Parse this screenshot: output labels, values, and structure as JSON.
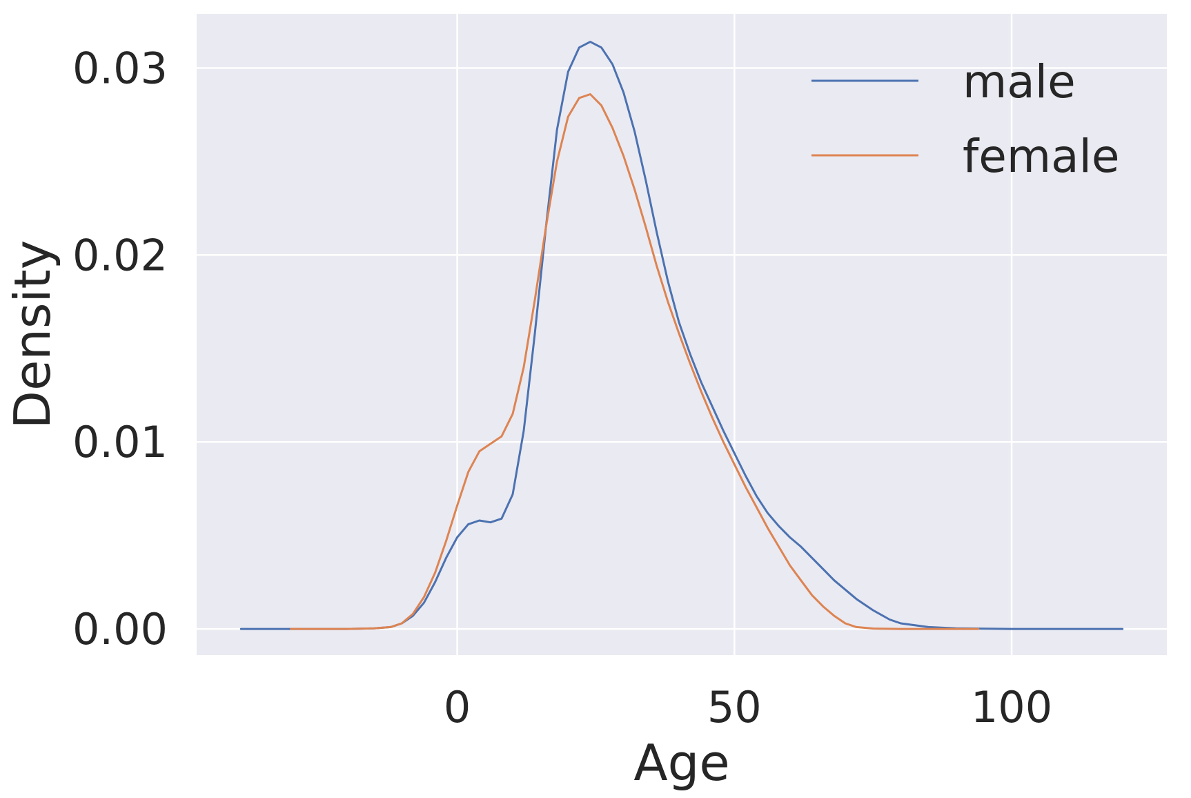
{
  "chart_data": {
    "type": "line",
    "title": "",
    "xlabel": "Age",
    "ylabel": "Density",
    "xlim": [
      -47,
      128
    ],
    "ylim": [
      -0.0014,
      0.0329
    ],
    "xticks": [
      0,
      50,
      100
    ],
    "xtick_labels": [
      "0",
      "50",
      "100"
    ],
    "yticks": [
      0.0,
      0.01,
      0.02,
      0.03
    ],
    "ytick_labels": [
      "0.00",
      "0.01",
      "0.02",
      "0.03"
    ],
    "grid": true,
    "legend": "top-right",
    "series": [
      {
        "name": "male",
        "color": "#4c72b0",
        "x": [
          -39,
          -30,
          -20,
          -15,
          -12,
          -10,
          -8,
          -6,
          -4,
          -2,
          0,
          2,
          4,
          6,
          8,
          10,
          12,
          14,
          16,
          18,
          20,
          22,
          24,
          26,
          28,
          30,
          32,
          34,
          36,
          38,
          40,
          42,
          44,
          46,
          48,
          50,
          52,
          54,
          56,
          58,
          60,
          62,
          64,
          66,
          68,
          70,
          72,
          75,
          78,
          80,
          85,
          90,
          100,
          110,
          120
        ],
        "y": [
          0.0,
          0.0,
          0.0,
          3e-05,
          0.0001,
          0.0003,
          0.0007,
          0.0014,
          0.0025,
          0.0038,
          0.0049,
          0.0056,
          0.0058,
          0.0057,
          0.0059,
          0.0072,
          0.0106,
          0.0158,
          0.0215,
          0.0267,
          0.0298,
          0.0311,
          0.0314,
          0.0311,
          0.0302,
          0.0287,
          0.0266,
          0.024,
          0.0212,
          0.0186,
          0.0164,
          0.0147,
          0.0132,
          0.0119,
          0.0106,
          0.0094,
          0.0082,
          0.0071,
          0.0062,
          0.0055,
          0.0049,
          0.0044,
          0.0038,
          0.0032,
          0.0026,
          0.0021,
          0.0016,
          0.001,
          0.0005,
          0.0003,
          0.0001,
          3e-05,
          0.0,
          0.0,
          0.0
        ]
      },
      {
        "name": "female",
        "color": "#dd8452",
        "x": [
          -30,
          -20,
          -15,
          -12,
          -10,
          -8,
          -6,
          -4,
          -2,
          0,
          2,
          4,
          6,
          8,
          10,
          12,
          14,
          16,
          18,
          20,
          22,
          24,
          26,
          28,
          30,
          32,
          34,
          36,
          38,
          40,
          42,
          44,
          46,
          48,
          50,
          52,
          54,
          56,
          58,
          60,
          62,
          64,
          66,
          68,
          70,
          72,
          75,
          80,
          85,
          94
        ],
        "y": [
          0.0,
          0.0,
          3e-05,
          0.0001,
          0.0003,
          0.0008,
          0.0017,
          0.003,
          0.0047,
          0.0066,
          0.0084,
          0.0095,
          0.0099,
          0.0103,
          0.0115,
          0.014,
          0.0176,
          0.0215,
          0.025,
          0.0274,
          0.0284,
          0.0286,
          0.028,
          0.0268,
          0.0253,
          0.0235,
          0.0215,
          0.0194,
          0.0175,
          0.0158,
          0.0142,
          0.0127,
          0.0113,
          0.01,
          0.0088,
          0.0076,
          0.0065,
          0.0054,
          0.0044,
          0.0034,
          0.0026,
          0.0018,
          0.0012,
          0.0007,
          0.0003,
          0.0001,
          2e-05,
          0.0,
          0.0,
          0.0
        ]
      }
    ]
  }
}
